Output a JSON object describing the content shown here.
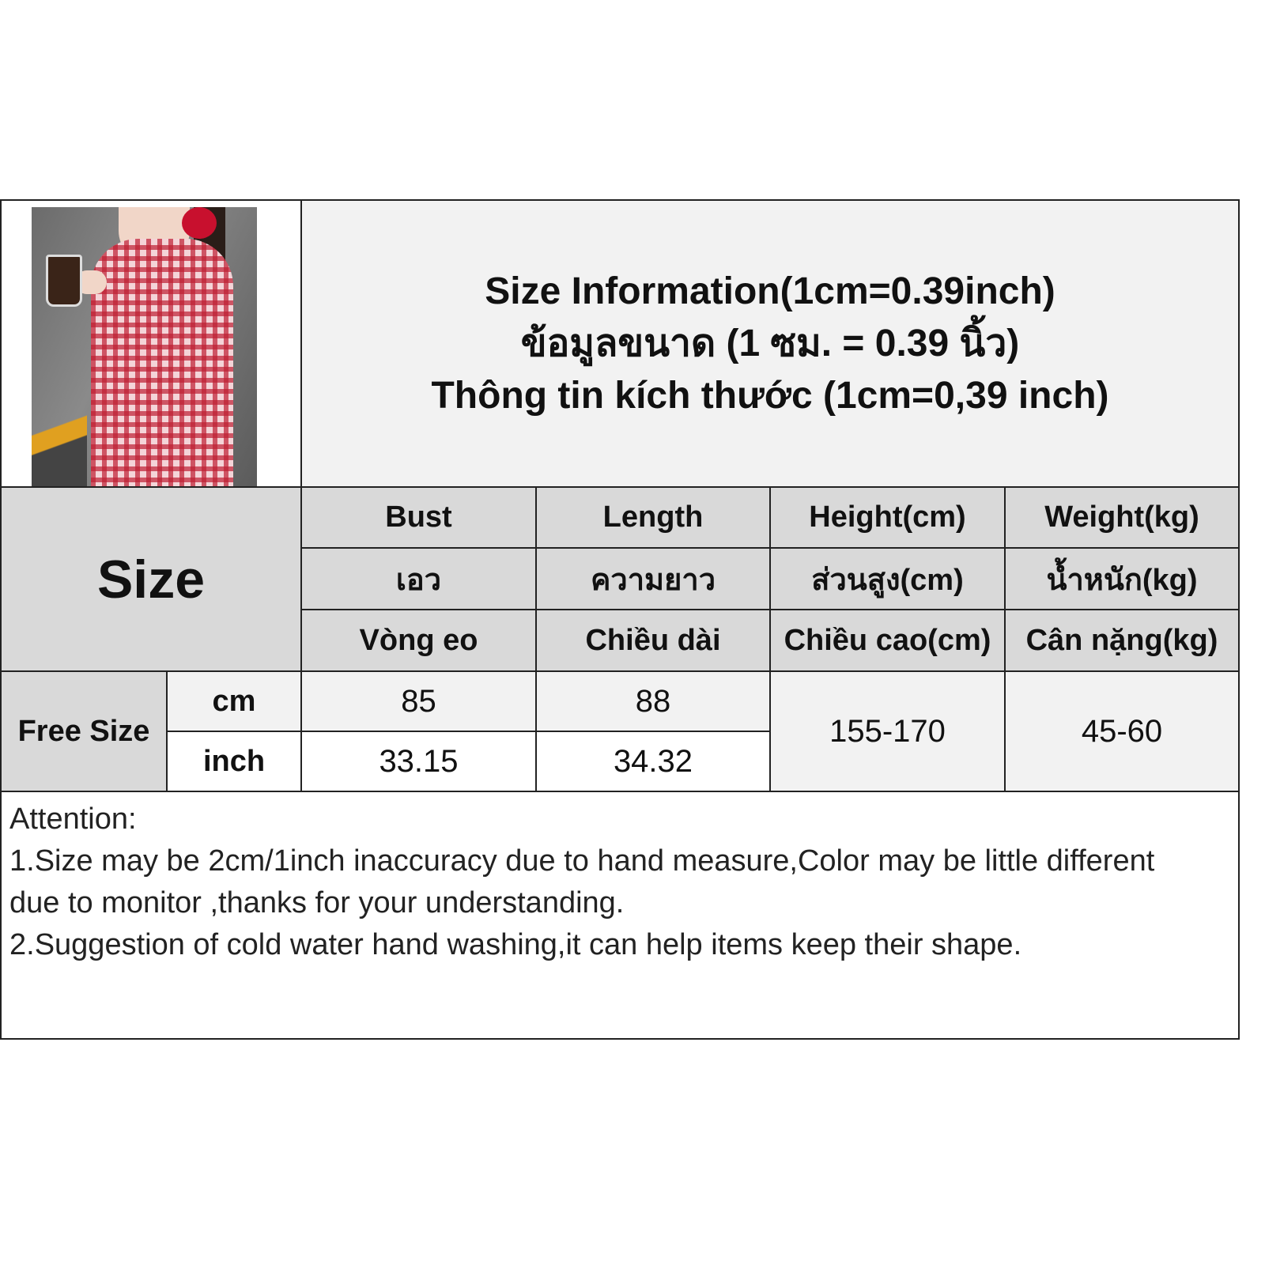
{
  "header": {
    "title_lines": [
      "Size Information(1cm=0.39inch)",
      "ข้อมูลขนาด (1 ซม. = 0.39 นิ้ว)",
      "Thông tin kích thước (1cm=0,39 inch)"
    ]
  },
  "table": {
    "size_label": "Size",
    "columns": [
      {
        "en": "Bust",
        "th": "เอว",
        "vi": "Vòng eo"
      },
      {
        "en": "Length",
        "th": "ความยาว",
        "vi": "Chiều dài"
      },
      {
        "en": "Height(cm)",
        "th": "ส่วนสูง(cm)",
        "vi": "Chiều cao(cm)"
      },
      {
        "en": "Weight(kg)",
        "th": "น้ำหนัก(kg)",
        "vi": "Cân nặng(kg)"
      }
    ],
    "row_label": "Free Size",
    "units": [
      "cm",
      "inch"
    ],
    "values": {
      "cm": [
        "85",
        "88"
      ],
      "inch": [
        "33.15",
        "34.32"
      ],
      "height": "155-170",
      "weight": "45-60"
    }
  },
  "notes": {
    "heading": "Attention:",
    "lines": [
      "1.Size may be 2cm/1inch inaccuracy due to hand measure,Color may be little different",
      "due to monitor ,thanks for your understanding.",
      "2.Suggestion of cold water hand washing,it can help items keep their shape."
    ]
  },
  "colors": {
    "header_gray": "#d9d9d9",
    "light_gray": "#f2f2f2",
    "border": "#222222"
  }
}
